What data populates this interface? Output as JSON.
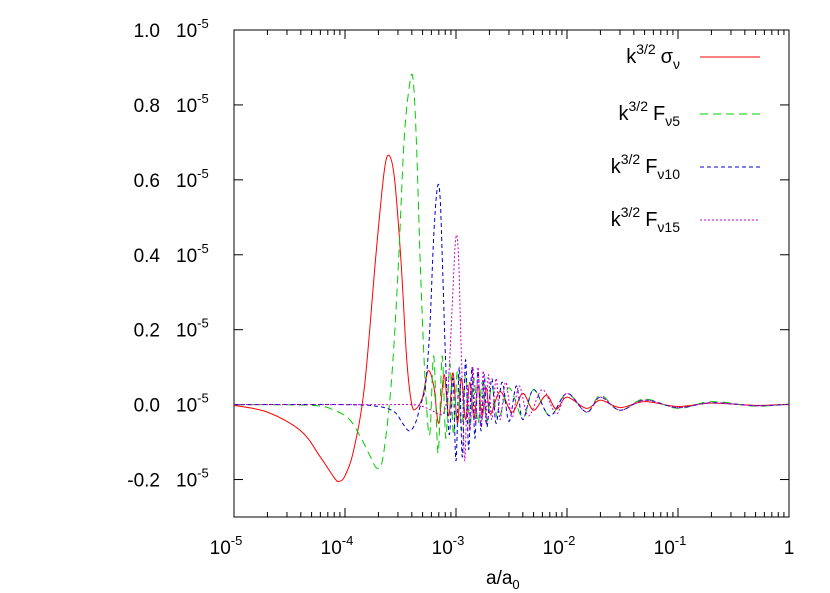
{
  "chart_data": {
    "type": "line",
    "xlabel": "a/a",
    "xlabel_sub": "0",
    "ylabel": "",
    "xscale": "log",
    "xlim": [
      1e-05,
      1
    ],
    "ylim": [
      -0.3,
      1.0
    ],
    "grid": false,
    "legend_position": "top-right",
    "x_ticks": [
      {
        "base": "10",
        "exp": "-5",
        "value": 1e-05
      },
      {
        "base": "10",
        "exp": "-4",
        "value": 0.0001
      },
      {
        "base": "10",
        "exp": "-3",
        "value": 0.001
      },
      {
        "base": "10",
        "exp": "-2",
        "value": 0.01
      },
      {
        "base": "10",
        "exp": "-1",
        "value": 0.1
      },
      {
        "base": "1",
        "exp": "",
        "value": 1
      }
    ],
    "y_ticks": [
      {
        "value": 1.0,
        "label": "1.0",
        "unit": "10",
        "exp": "-5"
      },
      {
        "value": 0.8,
        "label": "0.8",
        "unit": "10",
        "exp": "-5"
      },
      {
        "value": 0.6,
        "label": "0.6",
        "unit": "10",
        "exp": "-5"
      },
      {
        "value": 0.4,
        "label": "0.4",
        "unit": "10",
        "exp": "-5"
      },
      {
        "value": 0.2,
        "label": "0.2",
        "unit": "10",
        "exp": "-5"
      },
      {
        "value": 0.0,
        "label": "0.0",
        "unit": "10",
        "exp": "-5"
      },
      {
        "value": -0.2,
        "label": "-0.2",
        "unit": "10",
        "exp": "-5"
      }
    ],
    "series": [
      {
        "legend": {
          "prefix": "k",
          "sup": "3/2",
          "symbol": "σ",
          "sub": "ν"
        },
        "color": "#ff0000",
        "dash": "",
        "x": [
          1e-05,
          2e-05,
          4e-05,
          6e-05,
          8e-05,
          8.8e-05,
          0.0001,
          0.00012,
          0.00015,
          0.00019,
          0.000225,
          0.00025,
          0.00028,
          0.00032,
          0.00036,
          0.0004,
          0.00044,
          0.0005,
          0.00056,
          0.00063,
          0.0007,
          0.00078,
          0.00086,
          0.00094,
          0.00103,
          0.00112,
          0.00122,
          0.00133,
          0.00145,
          0.00158,
          0.00172,
          0.00187,
          0.00204,
          0.0025,
          0.0032,
          0.004,
          0.005,
          0.0065,
          0.008,
          0.01,
          0.015,
          0.02,
          0.03,
          0.05,
          0.1,
          0.2,
          0.5,
          1
        ],
        "y": [
          -0.002,
          -0.02,
          -0.07,
          -0.14,
          -0.195,
          -0.205,
          -0.19,
          -0.12,
          0.05,
          0.4,
          0.62,
          0.665,
          0.6,
          0.38,
          0.12,
          0.0,
          -0.01,
          0.02,
          0.09,
          0.05,
          -0.05,
          0.08,
          -0.03,
          0.085,
          -0.05,
          0.07,
          -0.04,
          0.06,
          -0.035,
          0.05,
          -0.03,
          0.045,
          -0.025,
          0.035,
          -0.02,
          0.03,
          -0.015,
          0.025,
          -0.012,
          0.02,
          -0.01,
          0.012,
          -0.008,
          0.008,
          -0.005,
          0.004,
          -0.002,
          0.001
        ]
      },
      {
        "legend": {
          "prefix": "k",
          "sup": "3/2",
          "symbol": "F",
          "sub": "ν5"
        },
        "color": "#00cc00",
        "dash": "8,5",
        "x": [
          1e-05,
          5e-05,
          8e-05,
          0.00011,
          0.00014,
          0.00017,
          0.000195,
          0.00022,
          0.00026,
          0.0003,
          0.00034,
          0.00038,
          0.00041,
          0.00044,
          0.00048,
          0.00053,
          0.00058,
          0.00063,
          0.00069,
          0.00075,
          0.00081,
          0.00088,
          0.00095,
          0.00103,
          0.00112,
          0.00122,
          0.00133,
          0.00145,
          0.00158,
          0.00172,
          0.0019,
          0.0021,
          0.0024,
          0.003,
          0.004,
          0.005,
          0.007,
          0.01,
          0.015,
          0.02,
          0.03,
          0.05,
          0.1,
          0.2,
          0.5,
          1
        ],
        "y": [
          0.0,
          -0.002,
          -0.015,
          -0.04,
          -0.09,
          -0.14,
          -0.17,
          -0.14,
          0.05,
          0.35,
          0.7,
          0.85,
          0.87,
          0.7,
          0.35,
          0.05,
          -0.08,
          0.13,
          -0.13,
          0.13,
          -0.09,
          0.11,
          -0.08,
          0.09,
          -0.07,
          0.08,
          -0.06,
          0.07,
          -0.05,
          0.06,
          -0.045,
          0.05,
          -0.04,
          0.045,
          -0.035,
          0.04,
          -0.03,
          0.03,
          -0.02,
          0.025,
          -0.015,
          0.015,
          -0.01,
          0.008,
          -0.004,
          0.002
        ]
      },
      {
        "legend": {
          "prefix": "k",
          "sup": "3/2",
          "symbol": "F",
          "sub": "ν10"
        },
        "color": "#0000cc",
        "dash": "4,3",
        "x": [
          1e-05,
          0.0001,
          0.0002,
          0.00028,
          0.00033,
          0.00038,
          0.00043,
          0.00048,
          0.00053,
          0.00058,
          0.00063,
          0.00068,
          0.00072,
          0.00076,
          0.00081,
          0.00087,
          0.00094,
          0.001,
          0.00107,
          0.00114,
          0.00122,
          0.0013,
          0.00139,
          0.00148,
          0.00158,
          0.00168,
          0.0018,
          0.0019,
          0.0021,
          0.0023,
          0.0026,
          0.003,
          0.0035,
          0.004,
          0.005,
          0.007,
          0.01,
          0.015,
          0.02,
          0.03,
          0.05,
          0.1,
          0.2,
          0.5,
          1
        ],
        "y": [
          0.0,
          0.0,
          -0.005,
          -0.02,
          -0.05,
          -0.07,
          -0.05,
          0.0,
          0.05,
          0.2,
          0.45,
          0.58,
          0.55,
          0.35,
          0.1,
          -0.08,
          0.07,
          -0.15,
          0.1,
          -0.14,
          0.12,
          -0.12,
          0.1,
          -0.09,
          0.09,
          -0.07,
          0.08,
          -0.06,
          0.07,
          -0.05,
          0.06,
          -0.045,
          0.05,
          -0.04,
          0.04,
          -0.03,
          0.03,
          -0.02,
          0.02,
          -0.015,
          0.012,
          -0.008,
          0.005,
          -0.003,
          0.001
        ]
      },
      {
        "legend": {
          "prefix": "k",
          "sup": "3/2",
          "symbol": "F",
          "sub": "ν15"
        },
        "color": "#cc00cc",
        "dash": "2,2",
        "x": [
          1e-05,
          0.0002,
          0.0004,
          0.0005,
          0.0006,
          0.0007,
          0.00078,
          0.00085,
          0.00092,
          0.00098,
          0.00102,
          0.00106,
          0.0011,
          0.00115,
          0.0012,
          0.00127,
          0.00134,
          0.00142,
          0.0015,
          0.00158,
          0.00167,
          0.00176,
          0.00186,
          0.00196,
          0.0021,
          0.0023,
          0.0025,
          0.0028,
          0.0032,
          0.0037,
          0.0045,
          0.006,
          0.008,
          0.01,
          0.015,
          0.02,
          0.03,
          0.05,
          0.1,
          0.2,
          0.5,
          1
        ],
        "y": [
          0.0,
          0.0,
          0.0,
          -0.005,
          -0.015,
          -0.025,
          -0.02,
          0.05,
          0.25,
          0.42,
          0.45,
          0.38,
          0.2,
          0.02,
          -0.15,
          0.05,
          -0.07,
          0.1,
          -0.05,
          0.1,
          -0.06,
          0.09,
          -0.05,
          0.08,
          -0.04,
          0.07,
          -0.04,
          0.06,
          -0.035,
          0.05,
          -0.03,
          0.04,
          -0.025,
          0.03,
          -0.02,
          0.02,
          -0.015,
          0.012,
          -0.008,
          0.005,
          -0.003,
          0.001
        ]
      }
    ]
  }
}
